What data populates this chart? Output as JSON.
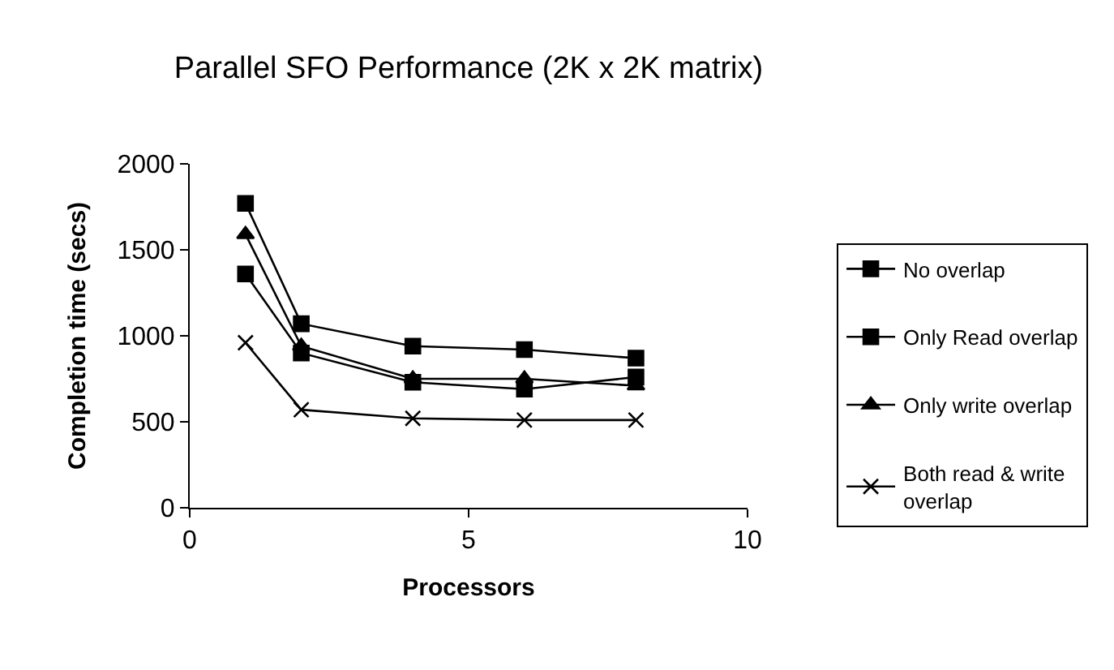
{
  "chart_data": {
    "type": "line",
    "title": "Parallel SFO Performance (2K x 2K matrix)",
    "xlabel": "Processors",
    "ylabel": "Completion time (secs)",
    "x": [
      1,
      2,
      4,
      6,
      8
    ],
    "series": [
      {
        "name": "No overlap",
        "color": "#000000",
        "marker": "square",
        "values": [
          1770,
          1070,
          940,
          920,
          870
        ]
      },
      {
        "name": "Only Read overlap",
        "color": "#000000",
        "marker": "square",
        "values": [
          1360,
          900,
          730,
          690,
          760
        ]
      },
      {
        "name": "Only write overlap",
        "color": "#000000",
        "marker": "triangle",
        "values": [
          1590,
          940,
          750,
          750,
          710
        ]
      },
      {
        "name": "Both read & write overlap",
        "color": "#000000",
        "marker": "cross",
        "values": [
          960,
          570,
          520,
          510,
          510
        ]
      }
    ],
    "xlim": [
      0,
      10
    ],
    "xticks": [
      0,
      5,
      10
    ],
    "ylim": [
      0,
      2000
    ],
    "yticks": [
      0,
      500,
      1000,
      1500,
      2000
    ],
    "legend": "right",
    "line_style": "solid"
  }
}
